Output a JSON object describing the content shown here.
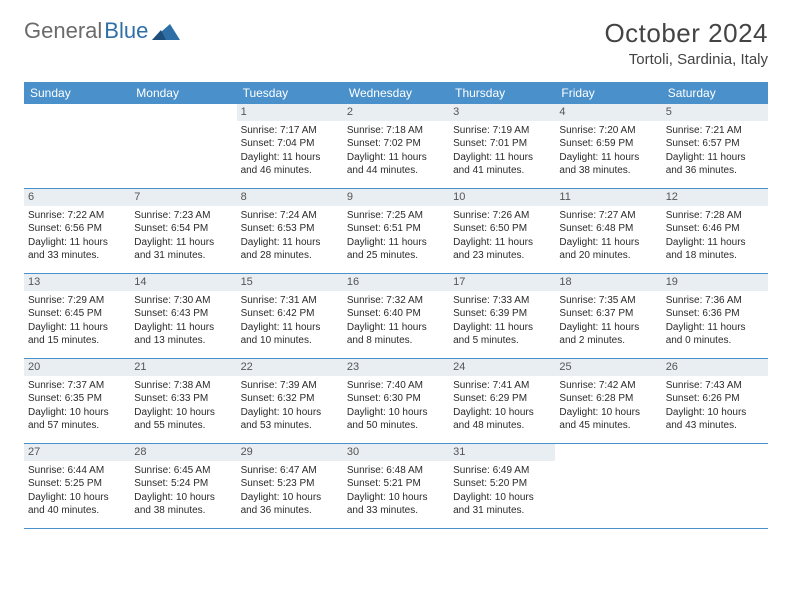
{
  "logo": {
    "part1": "General",
    "part2": "Blue"
  },
  "title": "October 2024",
  "location": "Tortoli, Sardinia, Italy",
  "colors": {
    "header_bg": "#4a90ca",
    "header_text": "#ffffff",
    "daynum_bg": "#e9eef2",
    "daynum_text": "#555555",
    "border": "#4a90ca",
    "body_text": "#2b2b2b",
    "logo_gray": "#6b6b6b",
    "logo_blue": "#2f6fa8"
  },
  "typography": {
    "title_fontsize": 26,
    "location_fontsize": 15,
    "dow_fontsize": 12,
    "daynum_fontsize": 11,
    "cell_fontsize": 10
  },
  "days_of_week": [
    "Sunday",
    "Monday",
    "Tuesday",
    "Wednesday",
    "Thursday",
    "Friday",
    "Saturday"
  ],
  "weeks": [
    [
      {
        "n": "",
        "lines": [
          "",
          "",
          "",
          ""
        ]
      },
      {
        "n": "",
        "lines": [
          "",
          "",
          "",
          ""
        ]
      },
      {
        "n": "1",
        "lines": [
          "Sunrise: 7:17 AM",
          "Sunset: 7:04 PM",
          "Daylight: 11 hours",
          "and 46 minutes."
        ]
      },
      {
        "n": "2",
        "lines": [
          "Sunrise: 7:18 AM",
          "Sunset: 7:02 PM",
          "Daylight: 11 hours",
          "and 44 minutes."
        ]
      },
      {
        "n": "3",
        "lines": [
          "Sunrise: 7:19 AM",
          "Sunset: 7:01 PM",
          "Daylight: 11 hours",
          "and 41 minutes."
        ]
      },
      {
        "n": "4",
        "lines": [
          "Sunrise: 7:20 AM",
          "Sunset: 6:59 PM",
          "Daylight: 11 hours",
          "and 38 minutes."
        ]
      },
      {
        "n": "5",
        "lines": [
          "Sunrise: 7:21 AM",
          "Sunset: 6:57 PM",
          "Daylight: 11 hours",
          "and 36 minutes."
        ]
      }
    ],
    [
      {
        "n": "6",
        "lines": [
          "Sunrise: 7:22 AM",
          "Sunset: 6:56 PM",
          "Daylight: 11 hours",
          "and 33 minutes."
        ]
      },
      {
        "n": "7",
        "lines": [
          "Sunrise: 7:23 AM",
          "Sunset: 6:54 PM",
          "Daylight: 11 hours",
          "and 31 minutes."
        ]
      },
      {
        "n": "8",
        "lines": [
          "Sunrise: 7:24 AM",
          "Sunset: 6:53 PM",
          "Daylight: 11 hours",
          "and 28 minutes."
        ]
      },
      {
        "n": "9",
        "lines": [
          "Sunrise: 7:25 AM",
          "Sunset: 6:51 PM",
          "Daylight: 11 hours",
          "and 25 minutes."
        ]
      },
      {
        "n": "10",
        "lines": [
          "Sunrise: 7:26 AM",
          "Sunset: 6:50 PM",
          "Daylight: 11 hours",
          "and 23 minutes."
        ]
      },
      {
        "n": "11",
        "lines": [
          "Sunrise: 7:27 AM",
          "Sunset: 6:48 PM",
          "Daylight: 11 hours",
          "and 20 minutes."
        ]
      },
      {
        "n": "12",
        "lines": [
          "Sunrise: 7:28 AM",
          "Sunset: 6:46 PM",
          "Daylight: 11 hours",
          "and 18 minutes."
        ]
      }
    ],
    [
      {
        "n": "13",
        "lines": [
          "Sunrise: 7:29 AM",
          "Sunset: 6:45 PM",
          "Daylight: 11 hours",
          "and 15 minutes."
        ]
      },
      {
        "n": "14",
        "lines": [
          "Sunrise: 7:30 AM",
          "Sunset: 6:43 PM",
          "Daylight: 11 hours",
          "and 13 minutes."
        ]
      },
      {
        "n": "15",
        "lines": [
          "Sunrise: 7:31 AM",
          "Sunset: 6:42 PM",
          "Daylight: 11 hours",
          "and 10 minutes."
        ]
      },
      {
        "n": "16",
        "lines": [
          "Sunrise: 7:32 AM",
          "Sunset: 6:40 PM",
          "Daylight: 11 hours",
          "and 8 minutes."
        ]
      },
      {
        "n": "17",
        "lines": [
          "Sunrise: 7:33 AM",
          "Sunset: 6:39 PM",
          "Daylight: 11 hours",
          "and 5 minutes."
        ]
      },
      {
        "n": "18",
        "lines": [
          "Sunrise: 7:35 AM",
          "Sunset: 6:37 PM",
          "Daylight: 11 hours",
          "and 2 minutes."
        ]
      },
      {
        "n": "19",
        "lines": [
          "Sunrise: 7:36 AM",
          "Sunset: 6:36 PM",
          "Daylight: 11 hours",
          "and 0 minutes."
        ]
      }
    ],
    [
      {
        "n": "20",
        "lines": [
          "Sunrise: 7:37 AM",
          "Sunset: 6:35 PM",
          "Daylight: 10 hours",
          "and 57 minutes."
        ]
      },
      {
        "n": "21",
        "lines": [
          "Sunrise: 7:38 AM",
          "Sunset: 6:33 PM",
          "Daylight: 10 hours",
          "and 55 minutes."
        ]
      },
      {
        "n": "22",
        "lines": [
          "Sunrise: 7:39 AM",
          "Sunset: 6:32 PM",
          "Daylight: 10 hours",
          "and 53 minutes."
        ]
      },
      {
        "n": "23",
        "lines": [
          "Sunrise: 7:40 AM",
          "Sunset: 6:30 PM",
          "Daylight: 10 hours",
          "and 50 minutes."
        ]
      },
      {
        "n": "24",
        "lines": [
          "Sunrise: 7:41 AM",
          "Sunset: 6:29 PM",
          "Daylight: 10 hours",
          "and 48 minutes."
        ]
      },
      {
        "n": "25",
        "lines": [
          "Sunrise: 7:42 AM",
          "Sunset: 6:28 PM",
          "Daylight: 10 hours",
          "and 45 minutes."
        ]
      },
      {
        "n": "26",
        "lines": [
          "Sunrise: 7:43 AM",
          "Sunset: 6:26 PM",
          "Daylight: 10 hours",
          "and 43 minutes."
        ]
      }
    ],
    [
      {
        "n": "27",
        "lines": [
          "Sunrise: 6:44 AM",
          "Sunset: 5:25 PM",
          "Daylight: 10 hours",
          "and 40 minutes."
        ]
      },
      {
        "n": "28",
        "lines": [
          "Sunrise: 6:45 AM",
          "Sunset: 5:24 PM",
          "Daylight: 10 hours",
          "and 38 minutes."
        ]
      },
      {
        "n": "29",
        "lines": [
          "Sunrise: 6:47 AM",
          "Sunset: 5:23 PM",
          "Daylight: 10 hours",
          "and 36 minutes."
        ]
      },
      {
        "n": "30",
        "lines": [
          "Sunrise: 6:48 AM",
          "Sunset: 5:21 PM",
          "Daylight: 10 hours",
          "and 33 minutes."
        ]
      },
      {
        "n": "31",
        "lines": [
          "Sunrise: 6:49 AM",
          "Sunset: 5:20 PM",
          "Daylight: 10 hours",
          "and 31 minutes."
        ]
      },
      {
        "n": "",
        "lines": [
          "",
          "",
          "",
          ""
        ]
      },
      {
        "n": "",
        "lines": [
          "",
          "",
          "",
          ""
        ]
      }
    ]
  ]
}
